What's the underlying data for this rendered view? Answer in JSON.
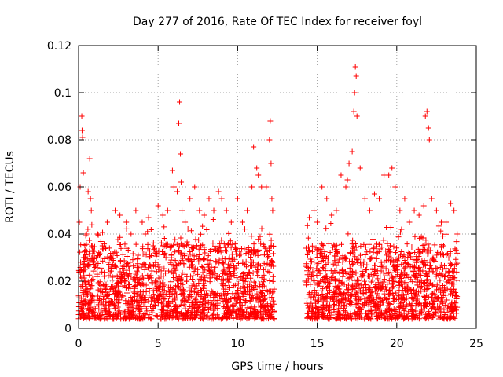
{
  "chart_data": {
    "type": "scatter",
    "title": "Day 277 of 2016, Rate Of TEC Index for receiver foyl",
    "xlabel": "GPS time / hours",
    "ylabel": "ROTI / TECUs",
    "xlim": [
      0,
      25
    ],
    "ylim": [
      0,
      0.12
    ],
    "x_ticks": [
      0,
      5,
      10,
      15,
      20,
      25
    ],
    "x_tick_labels": [
      "0",
      "5",
      "10",
      "15",
      "20",
      "25"
    ],
    "y_ticks": [
      0,
      0.02,
      0.04,
      0.06,
      0.08,
      0.1,
      0.12
    ],
    "y_tick_labels": [
      "0",
      "0.02",
      "0.04",
      "0.06",
      "0.08",
      "0.1",
      "0.12"
    ],
    "grid": true,
    "marker": "+",
    "color": "#ff0000",
    "series": [
      {
        "name": "ROTI",
        "data_gap_hours": [
          12.3,
          14.3
        ],
        "x": [
          0.05,
          0.1,
          0.2,
          0.22,
          0.25,
          0.3,
          0.35,
          0.4,
          0.5,
          0.6,
          0.7,
          0.75,
          0.8,
          0.85,
          0.9,
          1.0,
          1.2,
          1.5,
          1.8,
          2.0,
          2.3,
          2.6,
          3.0,
          3.3,
          3.6,
          4.0,
          4.2,
          4.4,
          4.7,
          5.0,
          5.3,
          5.6,
          5.9,
          6.0,
          6.2,
          6.3,
          6.35,
          6.4,
          6.45,
          6.5,
          6.7,
          7.0,
          7.3,
          7.6,
          7.9,
          8.2,
          8.5,
          8.8,
          9.0,
          9.3,
          9.6,
          10.0,
          10.3,
          10.6,
          10.9,
          11.0,
          11.2,
          11.3,
          11.5,
          11.8,
          12.0,
          12.05,
          12.1,
          12.15,
          12.2,
          14.5,
          14.8,
          15.0,
          15.3,
          15.6,
          15.9,
          16.2,
          16.5,
          16.8,
          16.9,
          17.0,
          17.2,
          17.3,
          17.35,
          17.4,
          17.45,
          17.5,
          17.7,
          18.0,
          18.3,
          18.6,
          18.9,
          19.2,
          19.5,
          19.7,
          19.9,
          20.2,
          20.5,
          20.8,
          21.1,
          21.4,
          21.7,
          21.8,
          21.9,
          22.0,
          22.05,
          22.2,
          22.5,
          22.8,
          23.1,
          23.4,
          23.6,
          23.8
        ],
        "y": [
          0.045,
          0.06,
          0.09,
          0.084,
          0.081,
          0.066,
          0.03,
          0.025,
          0.04,
          0.058,
          0.072,
          0.055,
          0.05,
          0.035,
          0.028,
          0.03,
          0.04,
          0.035,
          0.045,
          0.03,
          0.05,
          0.048,
          0.045,
          0.04,
          0.05,
          0.045,
          0.04,
          0.047,
          0.035,
          0.052,
          0.048,
          0.05,
          0.067,
          0.06,
          0.058,
          0.087,
          0.096,
          0.074,
          0.062,
          0.05,
          0.045,
          0.055,
          0.06,
          0.05,
          0.048,
          0.055,
          0.05,
          0.058,
          0.055,
          0.05,
          0.045,
          0.055,
          0.045,
          0.05,
          0.06,
          0.077,
          0.068,
          0.065,
          0.06,
          0.06,
          0.08,
          0.088,
          0.07,
          0.055,
          0.05,
          0.047,
          0.05,
          0.045,
          0.06,
          0.055,
          0.048,
          0.05,
          0.065,
          0.06,
          0.063,
          0.07,
          0.075,
          0.092,
          0.1,
          0.111,
          0.107,
          0.09,
          0.068,
          0.055,
          0.05,
          0.057,
          0.055,
          0.065,
          0.065,
          0.068,
          0.06,
          0.05,
          0.055,
          0.045,
          0.05,
          0.048,
          0.052,
          0.09,
          0.092,
          0.085,
          0.08,
          0.055,
          0.05,
          0.045,
          0.045,
          0.053,
          0.05,
          0.04
        ]
      }
    ]
  }
}
